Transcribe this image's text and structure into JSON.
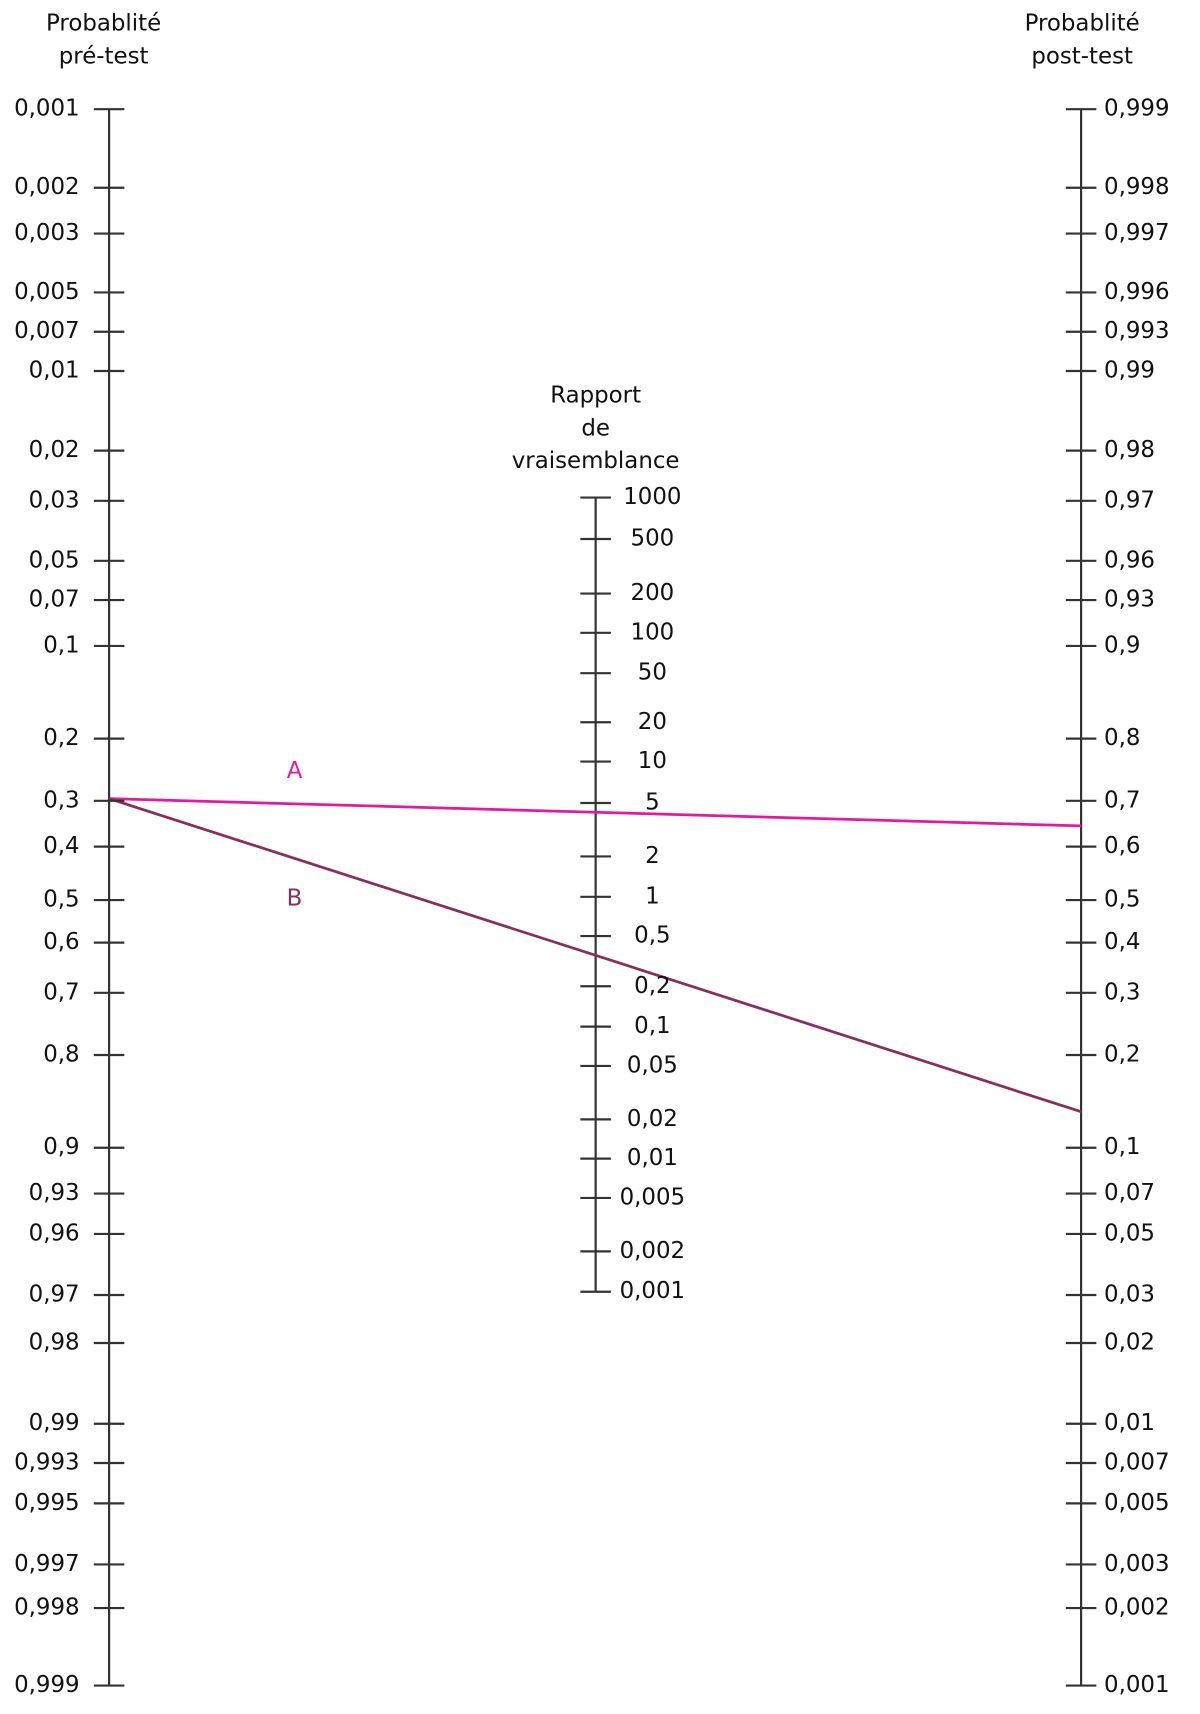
{
  "pretest": {
    "title": [
      "Probablité",
      "pré-test"
    ],
    "ticks": [
      "0,001",
      "0,002",
      "0,003",
      "0,005",
      "0,007",
      "0,01",
      "0,02",
      "0,03",
      "0,05",
      "0,07",
      "0,1",
      "0,2",
      "0,3",
      "0,4",
      "0,5",
      "0,6",
      "0,7",
      "0,8",
      "0,9",
      "0,93",
      "0,96",
      "0,97",
      "0,98",
      "0,99",
      "0,993",
      "0,995",
      "0,997",
      "0,998",
      "0,999"
    ]
  },
  "likelihood": {
    "title": [
      "Rapport",
      "de",
      "vraisemblance"
    ],
    "ticks": [
      "1000",
      "500",
      "200",
      "100",
      "50",
      "20",
      "10",
      "5",
      "2",
      "1",
      "0,5",
      "0,2",
      "0,1",
      "0,05",
      "0,02",
      "0,01",
      "0,005",
      "0,002",
      "0,001"
    ]
  },
  "posttest": {
    "title": [
      "Probablité",
      "post-test"
    ],
    "ticks": [
      "0,999",
      "0,998",
      "0,997",
      "0,996",
      "0,993",
      "0,99",
      "0,98",
      "0,97",
      "0,96",
      "0,93",
      "0,9",
      "0,8",
      "0,7",
      "0,6",
      "0,5",
      "0,4",
      "0,3",
      "0,2",
      "0,1",
      "0,07",
      "0,05",
      "0,03",
      "0,02",
      "0,01",
      "0,007",
      "0,005",
      "0,003",
      "0,002",
      "0,001"
    ]
  },
  "lines": [
    {
      "label": "A"
    },
    {
      "label": "B"
    }
  ]
}
